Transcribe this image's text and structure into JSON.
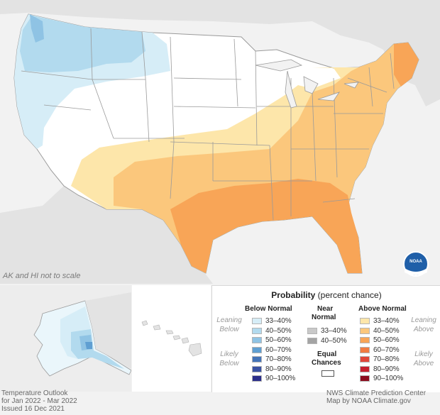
{
  "map": {
    "title": "Temperature Outlook",
    "period": "for Jan 2022 - Mar 2022",
    "issued": "Issued 16 Dec 2021",
    "credit_1": "NWS Climate Prediction Center",
    "credit_2": "Map by NOAA Climate.gov",
    "scale_note": "AK and HI not to scale",
    "logo_text": "NOAA",
    "regions": [
      "contiguous United States",
      "Alaska",
      "Hawaii"
    ],
    "colors": {
      "land_outside": "#e3e3e3",
      "water": "#f2f2f2",
      "equal_chances": "#ffffff",
      "state_border": "#999999"
    }
  },
  "legend": {
    "title": "Probability",
    "title_suffix": "(percent chance)",
    "below_header": "Below Normal",
    "near_header_1": "Near",
    "near_header_2": "Normal",
    "above_header": "Above Normal",
    "leaning_below_1": "Leaning",
    "leaning_below_2": "Below",
    "likely_below_1": "Likely",
    "likely_below_2": "Below",
    "leaning_above_1": "Leaning",
    "leaning_above_2": "Above",
    "likely_above_1": "Likely",
    "likely_above_2": "Above",
    "equal_1": "Equal",
    "equal_2": "Chances",
    "below": [
      {
        "range": "33–40%",
        "color": "#d6edf7"
      },
      {
        "range": "40–50%",
        "color": "#b2daee"
      },
      {
        "range": "50–60%",
        "color": "#8fc3e4"
      },
      {
        "range": "60–70%",
        "color": "#5f9fd2"
      },
      {
        "range": "70–80%",
        "color": "#4474b8"
      },
      {
        "range": "80–90%",
        "color": "#3a52a3"
      },
      {
        "range": "90–100%",
        "color": "#2b2e8a"
      }
    ],
    "near": [
      {
        "range": "33–40%",
        "color": "#c9c9c9"
      },
      {
        "range": "40–50%",
        "color": "#a4a4a4"
      }
    ],
    "above": [
      {
        "range": "33–40%",
        "color": "#fde6aa"
      },
      {
        "range": "40–50%",
        "color": "#fbc77c"
      },
      {
        "range": "50–60%",
        "color": "#f8a557"
      },
      {
        "range": "60–70%",
        "color": "#f17c42"
      },
      {
        "range": "70–80%",
        "color": "#e0473a"
      },
      {
        "range": "80–90%",
        "color": "#c4202e"
      },
      {
        "range": "90–100%",
        "color": "#8b0d1e"
      }
    ]
  }
}
